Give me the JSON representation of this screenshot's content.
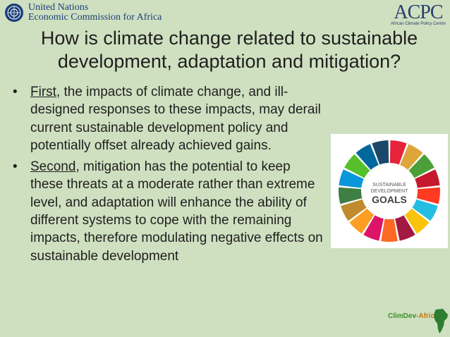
{
  "header": {
    "org_line1": "United Nations",
    "org_line2": "Economic Commission for Africa",
    "partner_logo": "ACPC",
    "partner_logo_sup": "*",
    "partner_subtitle": "African Climate Policy Centre"
  },
  "slide": {
    "title_line1": "How is climate change related to sustainable",
    "title_line2": "development, adaptation and mitigation?",
    "bullets": [
      {
        "lead": "First",
        "text": ", the impacts of climate change, and ill-designed responses to these impacts, may derail current sustainable development policy and potentially offset already achieved gains."
      },
      {
        "lead": "Second",
        "text": ", mitigation has the potential to keep these threats at a moderate rather than extreme level, and adaptation will enhance the ability of different systems to cope with the remaining impacts, therefore modulating negative effects on sustainable development"
      }
    ]
  },
  "sdg": {
    "line1": "SUSTAINABLE",
    "line2": "DEVELOPMENT",
    "line3": "GOALS",
    "colors": [
      "#e5243b",
      "#dda63a",
      "#4c9f38",
      "#c5192d",
      "#ff3a21",
      "#26bde2",
      "#fcc30b",
      "#a21942",
      "#fd6925",
      "#dd1367",
      "#fd9d24",
      "#bf8b2e",
      "#3f7e44",
      "#0a97d9",
      "#56c02b",
      "#00689d",
      "#19486a"
    ]
  },
  "footer": {
    "logo_text1": "ClimDev",
    "logo_text2": "-Africa"
  }
}
